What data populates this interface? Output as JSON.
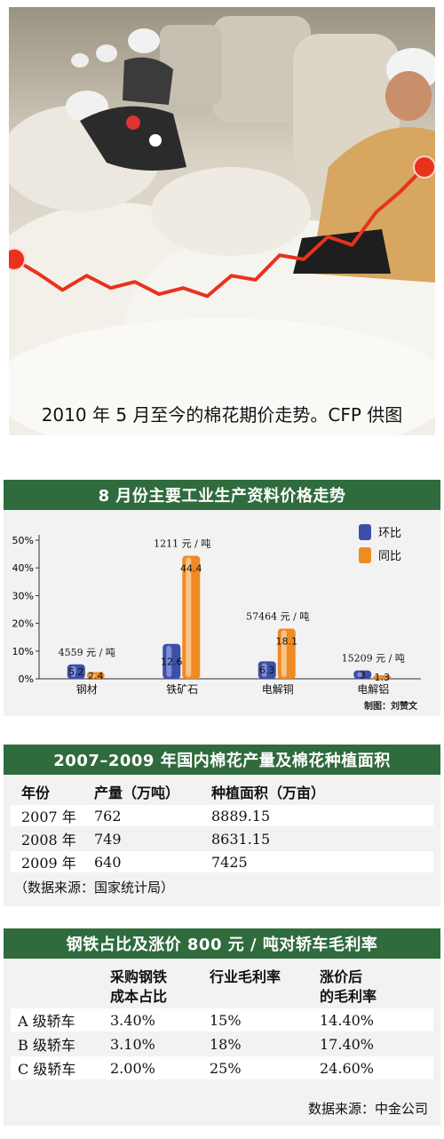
{
  "photo": {
    "caption": "2010 年 5 月至今的棉花期价走势。CFP 供图",
    "trend_line": [
      0.55,
      0.48,
      0.4,
      0.47,
      0.41,
      0.44,
      0.38,
      0.41,
      0.37,
      0.47,
      0.45,
      0.57,
      0.55,
      0.66,
      0.62,
      0.78,
      0.88,
      1.0
    ],
    "line_color": "#e8321e"
  },
  "chart_data": [
    {
      "type": "bar",
      "title": "8 月份主要工业生产资料价格走势",
      "categories": [
        "钢材",
        "铁矿石",
        "电解铜",
        "电解铝"
      ],
      "price_labels": [
        "4559 元 / 吨",
        "1211 元 / 吨",
        "57464 元 / 吨",
        "15209 元 / 吨"
      ],
      "series": [
        {
          "name": "环比",
          "values": [
            5.2,
            12.6,
            6.3,
            3
          ],
          "color": "#3d4fa8"
        },
        {
          "name": "同比",
          "values": [
            2.4,
            44.4,
            18.1,
            1.3
          ],
          "color": "#f08a24"
        }
      ],
      "yticks": [
        "0%",
        "10%",
        "20%",
        "30%",
        "40%",
        "50%"
      ],
      "ylim": [
        0,
        50
      ],
      "credit": "制图：刘赞文"
    },
    {
      "type": "table",
      "title": "2007–2009 年国内棉花产量及棉花种植面积",
      "columns": [
        "年份",
        "产量（万吨）",
        "种植面积（万亩）"
      ],
      "rows": [
        [
          "2007 年",
          "762",
          "8889.15"
        ],
        [
          "2008 年",
          "749",
          "8631.15"
        ],
        [
          "2009 年",
          "640",
          "7425"
        ]
      ],
      "source": "（数据来源：国家统计局）"
    },
    {
      "type": "table",
      "title": "钢铁占比及涨价 800 元 / 吨对轿车毛利率",
      "columns": [
        "",
        "采购钢铁 成本占比",
        "行业毛利率",
        "涨价后 的毛利率"
      ],
      "col_line1": [
        "",
        "采购钢铁",
        "行业毛利率",
        "涨价后"
      ],
      "col_line2": [
        "",
        "成本占比",
        "",
        "的毛利率"
      ],
      "rows": [
        [
          "A 级轿车",
          "3.40%",
          "15%",
          "14.40%"
        ],
        [
          "B 级轿车",
          "3.10%",
          "18%",
          "17.40%"
        ],
        [
          "C 级轿车",
          "2.00%",
          "25%",
          "24.60%"
        ]
      ],
      "source": "数据来源：中金公司"
    }
  ]
}
